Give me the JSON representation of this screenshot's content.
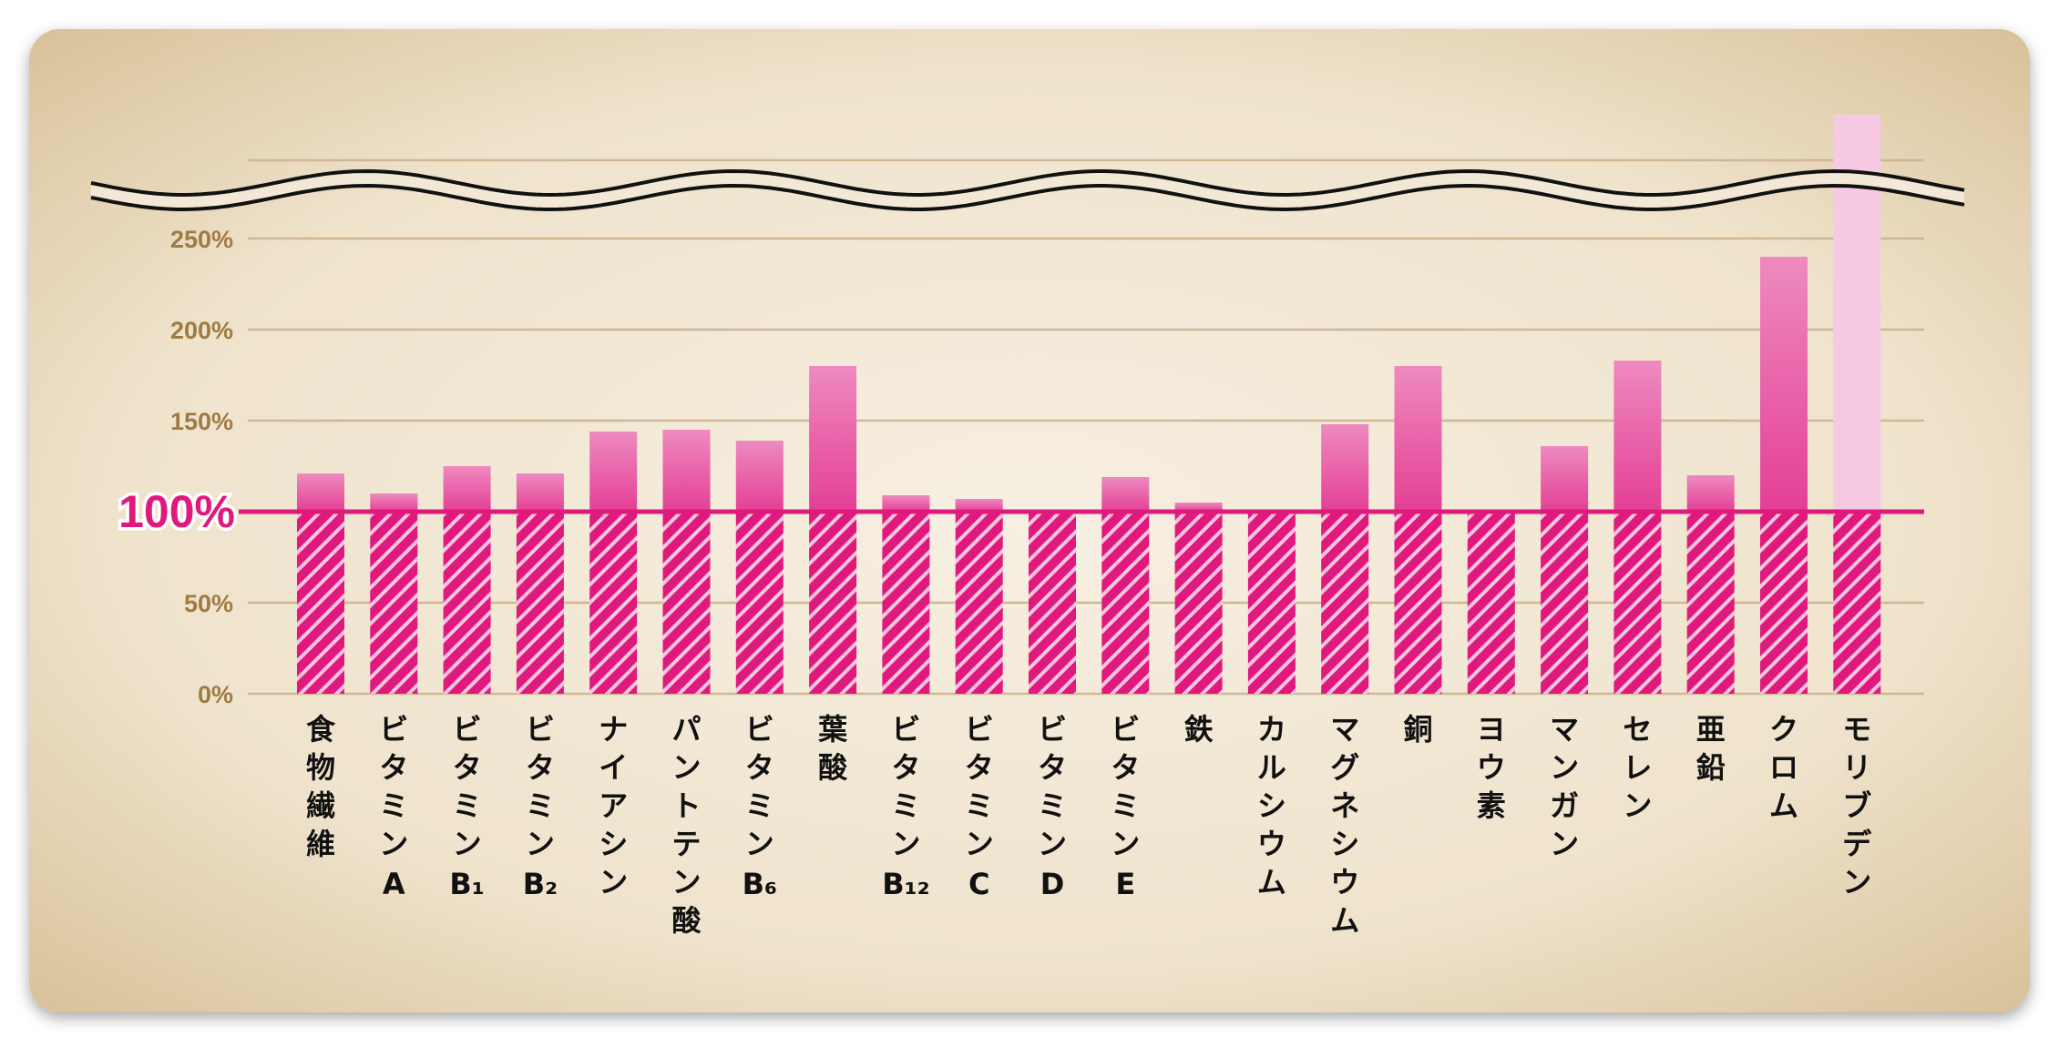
{
  "chart_data": {
    "type": "bar",
    "title": "",
    "xlabel": "",
    "ylabel": "",
    "ylim": [
      0,
      250
    ],
    "y_axis_break": true,
    "reference_line": 100,
    "yticks": [
      "0%",
      "50%",
      "100%",
      "150%",
      "200%",
      "250%"
    ],
    "categories": [
      "食物繊維",
      "ビタミンA",
      "ビタミンB1",
      "ビタミンB2",
      "ナイアシン",
      "パントテン酸",
      "ビタミンB6",
      "葉酸",
      "ビタミンB12",
      "ビタミンC",
      "ビタミンD",
      "ビタミンE",
      "鉄",
      "カルシウム",
      "マグネシウム",
      "銅",
      "ヨウ素",
      "マンガン",
      "セレン",
      "亜鉛",
      "クロム",
      "モリブデン"
    ],
    "category_labels": [
      {
        "main": "食物繊維",
        "sub": ""
      },
      {
        "main": "ビタミン",
        "sub": "A"
      },
      {
        "main": "ビタミン",
        "sub": "B₁"
      },
      {
        "main": "ビタミン",
        "sub": "B₂"
      },
      {
        "main": "ナイアシン",
        "sub": ""
      },
      {
        "main": "パントテン酸",
        "sub": ""
      },
      {
        "main": "ビタミン",
        "sub": "B₆"
      },
      {
        "main": "葉酸",
        "sub": ""
      },
      {
        "main": "ビタミン",
        "sub": "B₁₂"
      },
      {
        "main": "ビタミン",
        "sub": "C"
      },
      {
        "main": "ビタミン",
        "sub": "D"
      },
      {
        "main": "ビタミン",
        "sub": "E"
      },
      {
        "main": "鉄",
        "sub": ""
      },
      {
        "main": "カルシウム",
        "sub": ""
      },
      {
        "main": "マグネシウム",
        "sub": ""
      },
      {
        "main": "銅",
        "sub": ""
      },
      {
        "main": "ヨウ素",
        "sub": ""
      },
      {
        "main": "マンガン",
        "sub": ""
      },
      {
        "main": "セレン",
        "sub": ""
      },
      {
        "main": "亜鉛",
        "sub": ""
      },
      {
        "main": "クロム",
        "sub": ""
      },
      {
        "main": "モリブデン",
        "sub": ""
      }
    ],
    "values": [
      121,
      110,
      125,
      121,
      144,
      145,
      139,
      180,
      109,
      107,
      100,
      119,
      105,
      100,
      148,
      180,
      100,
      136,
      183,
      120,
      240,
      330
    ],
    "over_scale": [
      false,
      false,
      false,
      false,
      false,
      false,
      false,
      false,
      false,
      false,
      false,
      false,
      false,
      false,
      false,
      false,
      false,
      false,
      false,
      false,
      false,
      true
    ],
    "colors": {
      "bar_top": "#ee8ac0",
      "bar_bottom": "#e43f95",
      "bar_hatch": "#e0197d",
      "bar_over_scale": "#f7c9e2",
      "reference_line": "#e0197d",
      "grid": "#cfb796",
      "axis_text": "#a07a44",
      "background": "#f1e6d3"
    }
  }
}
